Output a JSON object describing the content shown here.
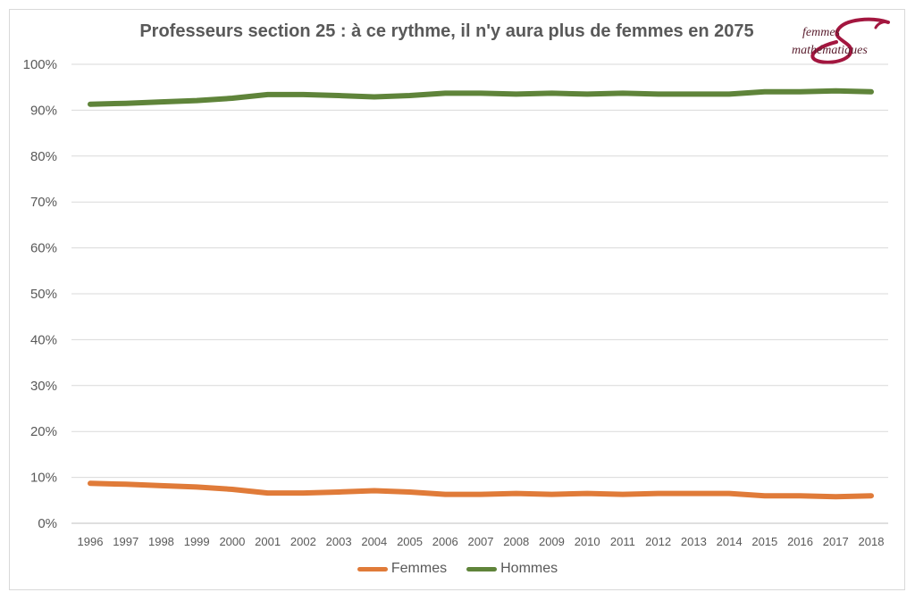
{
  "chart_data": {
    "type": "line",
    "title": "Professeurs section 25 : à ce rythme, il n'y aura plus de femmes en 2075",
    "x": [
      "1996",
      "1997",
      "1998",
      "1999",
      "2000",
      "2001",
      "2002",
      "2003",
      "2004",
      "2005",
      "2006",
      "2007",
      "2008",
      "2009",
      "2010",
      "2011",
      "2012",
      "2013",
      "2014",
      "2015",
      "2016",
      "2017",
      "2018"
    ],
    "ylim": [
      0,
      100
    ],
    "yticks": [
      "0%",
      "10%",
      "20%",
      "30%",
      "40%",
      "50%",
      "60%",
      "70%",
      "80%",
      "90%",
      "100%"
    ],
    "grid": true,
    "legend_position": "bottom",
    "series": [
      {
        "name": "Femmes",
        "color": "#e07b39",
        "values": [
          8.7,
          8.5,
          8.2,
          7.9,
          7.4,
          6.6,
          6.6,
          6.8,
          7.1,
          6.8,
          6.3,
          6.3,
          6.5,
          6.3,
          6.5,
          6.3,
          6.5,
          6.5,
          6.5,
          6.0,
          6.0,
          5.8,
          6.0
        ]
      },
      {
        "name": "Hommes",
        "color": "#5f843a",
        "values": [
          91.3,
          91.5,
          91.8,
          92.1,
          92.6,
          93.4,
          93.4,
          93.2,
          92.9,
          93.2,
          93.7,
          93.7,
          93.5,
          93.7,
          93.5,
          93.7,
          93.5,
          93.5,
          93.5,
          94.0,
          94.0,
          94.2,
          94.0
        ]
      }
    ]
  },
  "logo": {
    "line1": "femmes",
    "line2": "mathématiques",
    "color": "#a3163f"
  }
}
